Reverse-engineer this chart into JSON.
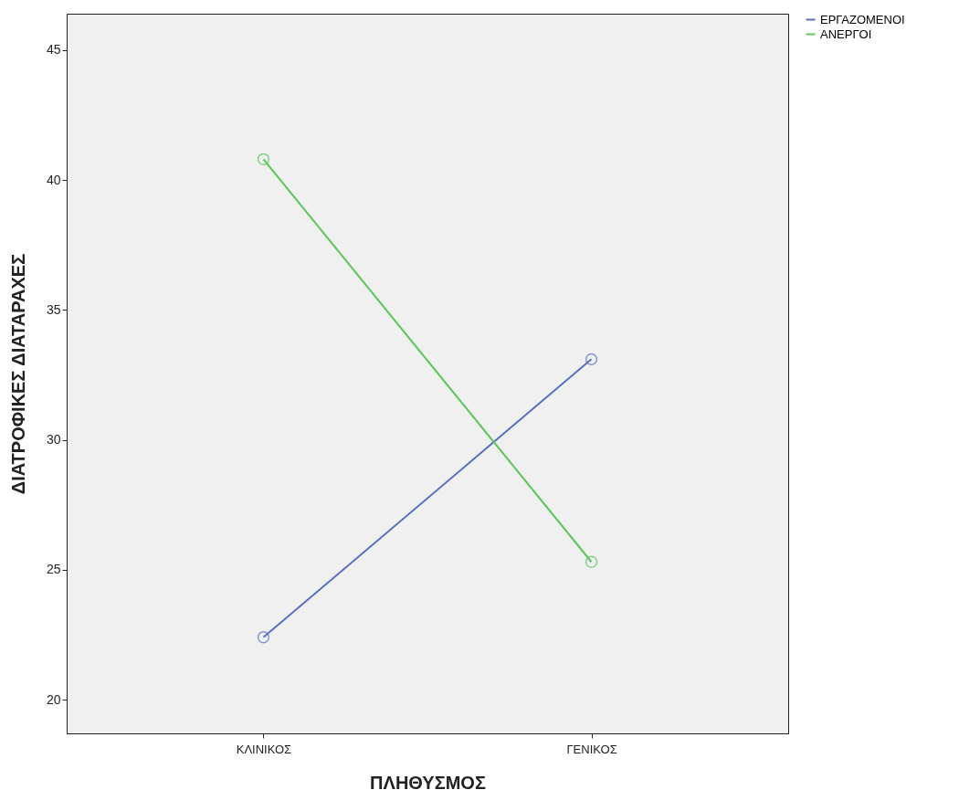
{
  "chart_data": {
    "type": "line",
    "xlabel": "ΠΛΗΘΥΣΜΟΣ",
    "ylabel": "ΔΙΑΤΡΟΦΙΚΕΣ ΔΙΑΤΑΡΑΧΕΣ",
    "categories": [
      "ΚΛΙΝΙΚΟΣ",
      "ΓΕΝΙΚΟΣ"
    ],
    "series": [
      {
        "name": "ΕΡΓΑΖΟΜΕΝΟΙ",
        "color": "#5a6fbf",
        "values": [
          22.4,
          33.1
        ]
      },
      {
        "name": "ΑΝΕΡΓΟΙ",
        "color": "#5cc55c",
        "values": [
          40.8,
          25.3
        ]
      }
    ],
    "ylim": [
      18.7,
      46.4
    ],
    "yticks": [
      20,
      25,
      30,
      35,
      40,
      45
    ],
    "grid": false,
    "legend": "top right",
    "marker": "circle",
    "line_style": "solid"
  }
}
